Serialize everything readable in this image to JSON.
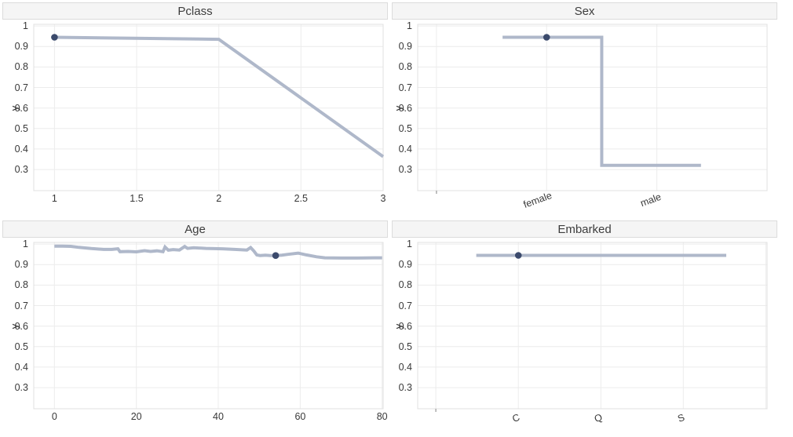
{
  "style": {
    "background": "#ffffff",
    "line_color": "#afb8ca",
    "marker_color": "#3b4a6c",
    "title_bar_bg": "#f5f5f5",
    "title_bar_border": "#dcdcdc",
    "grid_color": "#ececec",
    "plot_border_color": "#e0e0e0",
    "tick_text_color": "#383838",
    "edge_tick_color": "#aaaaaa"
  },
  "chart_data": [
    {
      "type": "line",
      "title": "Pclass",
      "ylabel": "y",
      "x": [
        1,
        2,
        3
      ],
      "y": [
        0.945,
        0.935,
        0.363
      ],
      "marker": {
        "x": 1,
        "y": 0.945
      },
      "xlim": [
        0.874,
        3.0
      ],
      "ylim": [
        0.197,
        1.008
      ],
      "xgrid": [
        1,
        1.5,
        2,
        2.5,
        3
      ],
      "xticks": [
        {
          "v": 1,
          "label": "1"
        },
        {
          "v": 1.5,
          "label": "1.5"
        },
        {
          "v": 2,
          "label": "2"
        },
        {
          "v": 2.5,
          "label": "2.5"
        },
        {
          "v": 3,
          "label": "3"
        }
      ],
      "yticks": [
        {
          "v": 1,
          "label": "1"
        },
        {
          "v": 0.9,
          "label": "0.9"
        },
        {
          "v": 0.8,
          "label": "0.8"
        },
        {
          "v": 0.7,
          "label": "0.7"
        },
        {
          "v": 0.6,
          "label": "0.6"
        },
        {
          "v": 0.5,
          "label": "0.5"
        },
        {
          "v": 0.4,
          "label": "0.4"
        },
        {
          "v": 0.3,
          "label": "0.3"
        }
      ],
      "tick_rotation": 0,
      "grid": true
    },
    {
      "type": "line",
      "title": "Sex",
      "ylabel": "y",
      "categories": [
        "female",
        "male"
      ],
      "x": [
        -0.4,
        0.5,
        0.5,
        1.4
      ],
      "y": [
        0.945,
        0.945,
        0.32,
        0.32
      ],
      "marker": {
        "x": 0,
        "y": 0.945
      },
      "xlim": [
        -1.17,
        2.0
      ],
      "ylim": [
        0.197,
        1.008
      ],
      "xgrid": [
        -1,
        0,
        1,
        2
      ],
      "edge_tick": -1,
      "xticks": [
        {
          "v": 0,
          "label": "female"
        },
        {
          "v": 1,
          "label": "male"
        }
      ],
      "yticks": [
        {
          "v": 1,
          "label": "1"
        },
        {
          "v": 0.9,
          "label": "0.9"
        },
        {
          "v": 0.8,
          "label": "0.8"
        },
        {
          "v": 0.7,
          "label": "0.7"
        },
        {
          "v": 0.6,
          "label": "0.6"
        },
        {
          "v": 0.5,
          "label": "0.5"
        },
        {
          "v": 0.4,
          "label": "0.4"
        },
        {
          "v": 0.3,
          "label": "0.3"
        }
      ],
      "tick_rotation": -20,
      "grid": true
    },
    {
      "type": "line",
      "title": "Age",
      "ylabel": "y",
      "x": [
        0,
        2,
        4,
        6,
        9,
        12,
        14,
        15.5,
        16,
        18,
        20,
        22,
        23.5,
        25,
        26.5,
        27,
        27.8,
        29,
        30.5,
        31.8,
        32.5,
        34,
        37,
        41,
        44,
        47,
        47.9,
        48.7,
        49.4,
        50.2,
        51.5,
        52.7,
        54,
        55.5,
        57,
        59.5,
        61.5,
        64,
        66,
        70,
        74,
        78,
        80
      ],
      "y": [
        0.99,
        0.99,
        0.989,
        0.984,
        0.978,
        0.974,
        0.974,
        0.977,
        0.963,
        0.964,
        0.962,
        0.968,
        0.964,
        0.967,
        0.963,
        0.986,
        0.97,
        0.973,
        0.971,
        0.988,
        0.979,
        0.982,
        0.979,
        0.977,
        0.974,
        0.971,
        0.983,
        0.966,
        0.947,
        0.944,
        0.946,
        0.944,
        0.944,
        0.946,
        0.95,
        0.956,
        0.947,
        0.938,
        0.933,
        0.932,
        0.932,
        0.933,
        0.933
      ],
      "marker": {
        "x": 54,
        "y": 0.944
      },
      "xlim": [
        -5.05,
        80.25
      ],
      "ylim": [
        0.197,
        1.008
      ],
      "xgrid": [
        0,
        20,
        40,
        60,
        80
      ],
      "xticks": [
        {
          "v": 0,
          "label": "0"
        },
        {
          "v": 20,
          "label": "20"
        },
        {
          "v": 40,
          "label": "40"
        },
        {
          "v": 60,
          "label": "60"
        },
        {
          "v": 80,
          "label": "80"
        }
      ],
      "yticks": [
        {
          "v": 1,
          "label": "1"
        },
        {
          "v": 0.9,
          "label": "0.9"
        },
        {
          "v": 0.8,
          "label": "0.8"
        },
        {
          "v": 0.7,
          "label": "0.7"
        },
        {
          "v": 0.6,
          "label": "0.6"
        },
        {
          "v": 0.5,
          "label": "0.5"
        },
        {
          "v": 0.4,
          "label": "0.4"
        },
        {
          "v": 0.3,
          "label": "0.3"
        }
      ],
      "tick_rotation": 0,
      "grid": true
    },
    {
      "type": "line",
      "title": "Embarked",
      "ylabel": "y",
      "categories": [
        "C",
        "Q",
        "S"
      ],
      "x": [
        -0.51,
        2.52
      ],
      "y": [
        0.945,
        0.945
      ],
      "marker": {
        "x": 0,
        "y": 0.945
      },
      "xlim": [
        -1.22,
        3.015
      ],
      "ylim": [
        0.197,
        1.008
      ],
      "xgrid": [
        -1,
        0,
        1,
        2,
        3
      ],
      "edge_tick": -1,
      "xticks": [
        {
          "v": 0,
          "label": "C"
        },
        {
          "v": 1,
          "label": "Q"
        },
        {
          "v": 2,
          "label": "S"
        }
      ],
      "yticks": [
        {
          "v": 1,
          "label": "1"
        },
        {
          "v": 0.9,
          "label": "0.9"
        },
        {
          "v": 0.8,
          "label": "0.8"
        },
        {
          "v": 0.7,
          "label": "0.7"
        },
        {
          "v": 0.6,
          "label": "0.6"
        },
        {
          "v": 0.5,
          "label": "0.5"
        },
        {
          "v": 0.4,
          "label": "0.4"
        },
        {
          "v": 0.3,
          "label": "0.3"
        }
      ],
      "tick_rotation": -20,
      "grid": true
    }
  ]
}
